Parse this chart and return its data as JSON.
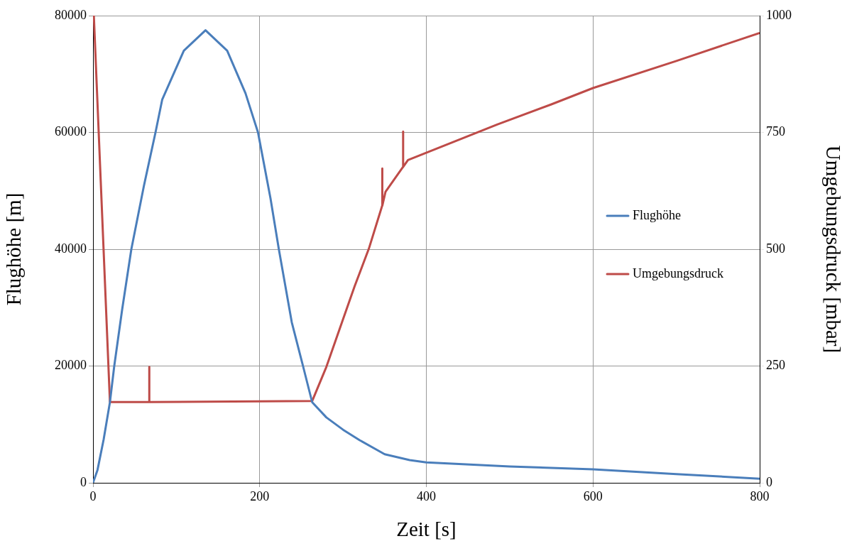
{
  "chart_data": {
    "type": "line",
    "xlabel": "Zeit [s]",
    "ylabel": "Flughöhe [m]",
    "y2label": "Umgebungsdruck [mbar]",
    "xlim": [
      0,
      800
    ],
    "xticks": [
      0,
      200,
      400,
      600,
      800
    ],
    "ylim": [
      0,
      80000
    ],
    "yticks": [
      0,
      20000,
      40000,
      60000,
      80000
    ],
    "y2lim": [
      0,
      1000
    ],
    "y2ticks": [
      0,
      250,
      500,
      750,
      1000
    ],
    "grid": true,
    "legend": "right",
    "marker": "none",
    "line_style": "solid",
    "series": [
      {
        "name": "Flughöhe",
        "color": "#4a7ebb",
        "x": [
          0,
          5.4,
          12.8,
          20.3,
          25.5,
          35,
          46,
          61,
          75,
          83,
          109,
          135,
          161,
          183,
          198,
          213,
          223,
          238.5,
          252,
          263,
          280,
          300,
          320,
          350,
          380,
          400,
          500,
          600,
          700,
          800
        ],
        "values": [
          0,
          2200,
          7450,
          13800,
          20000,
          29700,
          40000,
          50800,
          60000,
          65600,
          74000,
          77500,
          74000,
          66700,
          60000,
          48700,
          40000,
          27500,
          20000,
          13800,
          11200,
          9100,
          7300,
          4900,
          3900,
          3500,
          2800,
          2300,
          1500,
          700
        ]
      },
      {
        "name": "Umgebungsdruck",
        "color": "#be4b48",
        "axis": "y2",
        "x": [
          0,
          1,
          20.3,
          67.4,
          67.5,
          67.6,
          263,
          280,
          300,
          314,
          331,
          347,
          347.1,
          347.2,
          351,
          372,
          372.1,
          372.2,
          378,
          485,
          550,
          600,
          700,
          800
        ],
        "values": [
          1000,
          1000,
          173,
          173,
          248,
          173,
          175,
          248,
          350,
          421,
          501,
          593,
          673,
          593,
          623,
          676,
          752,
          676,
          691,
          767,
          810,
          845,
          903,
          963
        ]
      }
    ]
  }
}
